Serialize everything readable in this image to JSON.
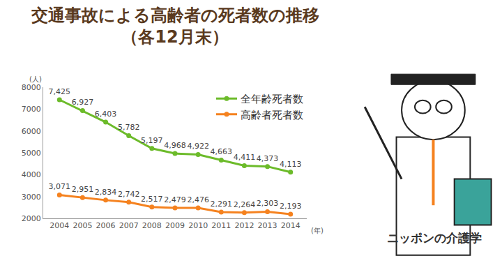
{
  "chart_data": {
    "type": "line",
    "title": "交通事故による高齢者の死者数の推移",
    "subtitle": "（各12月末）",
    "x_label": "(年)",
    "y_label": "(人)",
    "categories": [
      "2004",
      "2005",
      "2006",
      "2007",
      "2008",
      "2009",
      "2010",
      "2011",
      "2012",
      "2013",
      "2014"
    ],
    "series": [
      {
        "name": "全年齢死者数",
        "color": "#6cbb2a",
        "marker": "circle",
        "values": [
          7425,
          6927,
          6403,
          5782,
          5197,
          4968,
          4922,
          4663,
          4411,
          4373,
          4113
        ],
        "value_labels": [
          "7,425",
          "6,927",
          "6,403",
          "5,782",
          "5,197",
          "4,968",
          "4,922",
          "4,663",
          "4,411",
          "4,373",
          "4,113"
        ]
      },
      {
        "name": "高齢者死者数",
        "color": "#f5821f",
        "marker": "circle",
        "values": [
          3071,
          2951,
          2834,
          2742,
          2517,
          2479,
          2476,
          2291,
          2264,
          2303,
          2193
        ],
        "value_labels": [
          "3,071",
          "2,951",
          "2,834",
          "2,742",
          "2,517",
          "2,479",
          "2,476",
          "2,291",
          "2,264",
          "2,303",
          "2,193"
        ]
      }
    ],
    "ylim": [
      2000,
      8000
    ],
    "yticks": [
      2000,
      3000,
      4000,
      5000,
      6000,
      7000,
      8000
    ],
    "grid": false,
    "legend": "top right",
    "data_labels": true,
    "annotations": [
      "ニッポンの介護学"
    ]
  }
}
